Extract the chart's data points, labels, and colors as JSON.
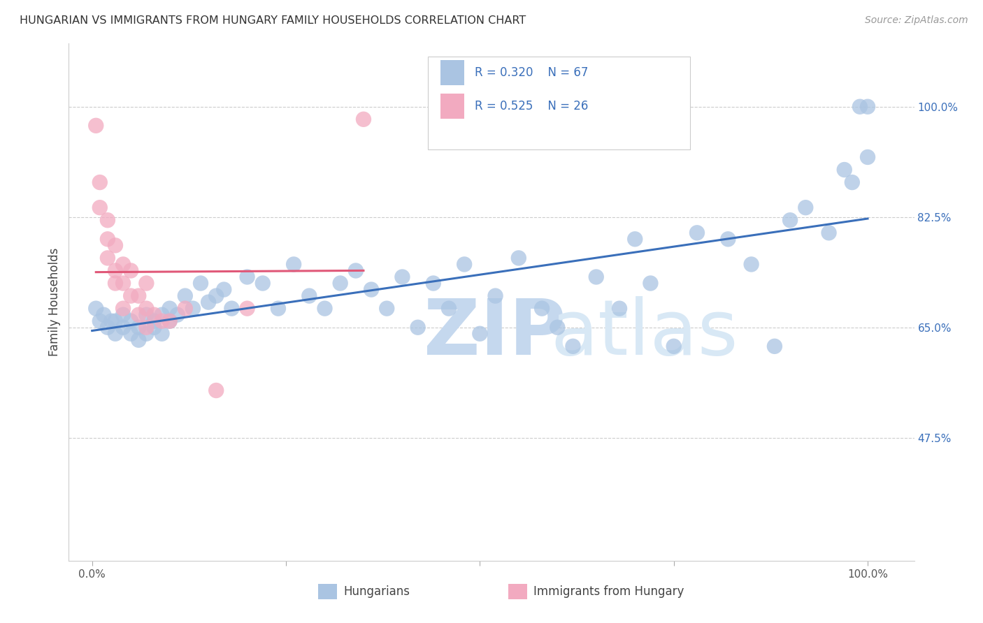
{
  "title": "HUNGARIAN VS IMMIGRANTS FROM HUNGARY FAMILY HOUSEHOLDS CORRELATION CHART",
  "source": "Source: ZipAtlas.com",
  "ylabel": "Family Households",
  "blue_R": 0.32,
  "blue_N": 67,
  "pink_R": 0.525,
  "pink_N": 26,
  "blue_color": "#aac4e2",
  "pink_color": "#f2aac0",
  "blue_line_color": "#3a6fba",
  "pink_line_color": "#e05878",
  "legend_text_color": "#3a6fba",
  "tick_color": "#3a6fba",
  "yticks": [
    0.475,
    0.65,
    0.825,
    1.0
  ],
  "ytick_labels": [
    "47.5%",
    "65.0%",
    "82.5%",
    "100.0%"
  ],
  "xlim": [
    -0.03,
    1.06
  ],
  "ylim": [
    0.28,
    1.1
  ],
  "blue_x": [
    0.005,
    0.01,
    0.015,
    0.02,
    0.025,
    0.03,
    0.03,
    0.04,
    0.04,
    0.05,
    0.05,
    0.06,
    0.06,
    0.07,
    0.07,
    0.08,
    0.08,
    0.09,
    0.09,
    0.1,
    0.1,
    0.11,
    0.12,
    0.13,
    0.14,
    0.15,
    0.16,
    0.17,
    0.18,
    0.2,
    0.22,
    0.24,
    0.26,
    0.28,
    0.3,
    0.32,
    0.34,
    0.36,
    0.38,
    0.4,
    0.42,
    0.44,
    0.46,
    0.48,
    0.5,
    0.52,
    0.55,
    0.58,
    0.6,
    0.62,
    0.65,
    0.68,
    0.7,
    0.72,
    0.75,
    0.78,
    0.82,
    0.85,
    0.88,
    0.9,
    0.92,
    0.95,
    0.97,
    0.98,
    0.99,
    1.0,
    1.0
  ],
  "blue_y": [
    0.68,
    0.66,
    0.67,
    0.65,
    0.66,
    0.64,
    0.66,
    0.65,
    0.67,
    0.64,
    0.66,
    0.65,
    0.63,
    0.64,
    0.67,
    0.65,
    0.66,
    0.64,
    0.67,
    0.66,
    0.68,
    0.67,
    0.7,
    0.68,
    0.72,
    0.69,
    0.7,
    0.71,
    0.68,
    0.73,
    0.72,
    0.68,
    0.75,
    0.7,
    0.68,
    0.72,
    0.74,
    0.71,
    0.68,
    0.73,
    0.65,
    0.72,
    0.68,
    0.75,
    0.64,
    0.7,
    0.76,
    0.68,
    0.65,
    0.62,
    0.73,
    0.68,
    0.79,
    0.72,
    0.62,
    0.8,
    0.79,
    0.75,
    0.62,
    0.82,
    0.84,
    0.8,
    0.9,
    0.88,
    1.0,
    0.92,
    1.0
  ],
  "pink_x": [
    0.005,
    0.01,
    0.01,
    0.02,
    0.02,
    0.02,
    0.03,
    0.03,
    0.03,
    0.04,
    0.04,
    0.04,
    0.05,
    0.05,
    0.06,
    0.06,
    0.07,
    0.07,
    0.07,
    0.08,
    0.09,
    0.1,
    0.12,
    0.16,
    0.2,
    0.35
  ],
  "pink_y": [
    0.97,
    0.88,
    0.84,
    0.82,
    0.79,
    0.76,
    0.78,
    0.74,
    0.72,
    0.75,
    0.72,
    0.68,
    0.74,
    0.7,
    0.7,
    0.67,
    0.72,
    0.68,
    0.65,
    0.67,
    0.66,
    0.66,
    0.68,
    0.55,
    0.68,
    0.98
  ]
}
